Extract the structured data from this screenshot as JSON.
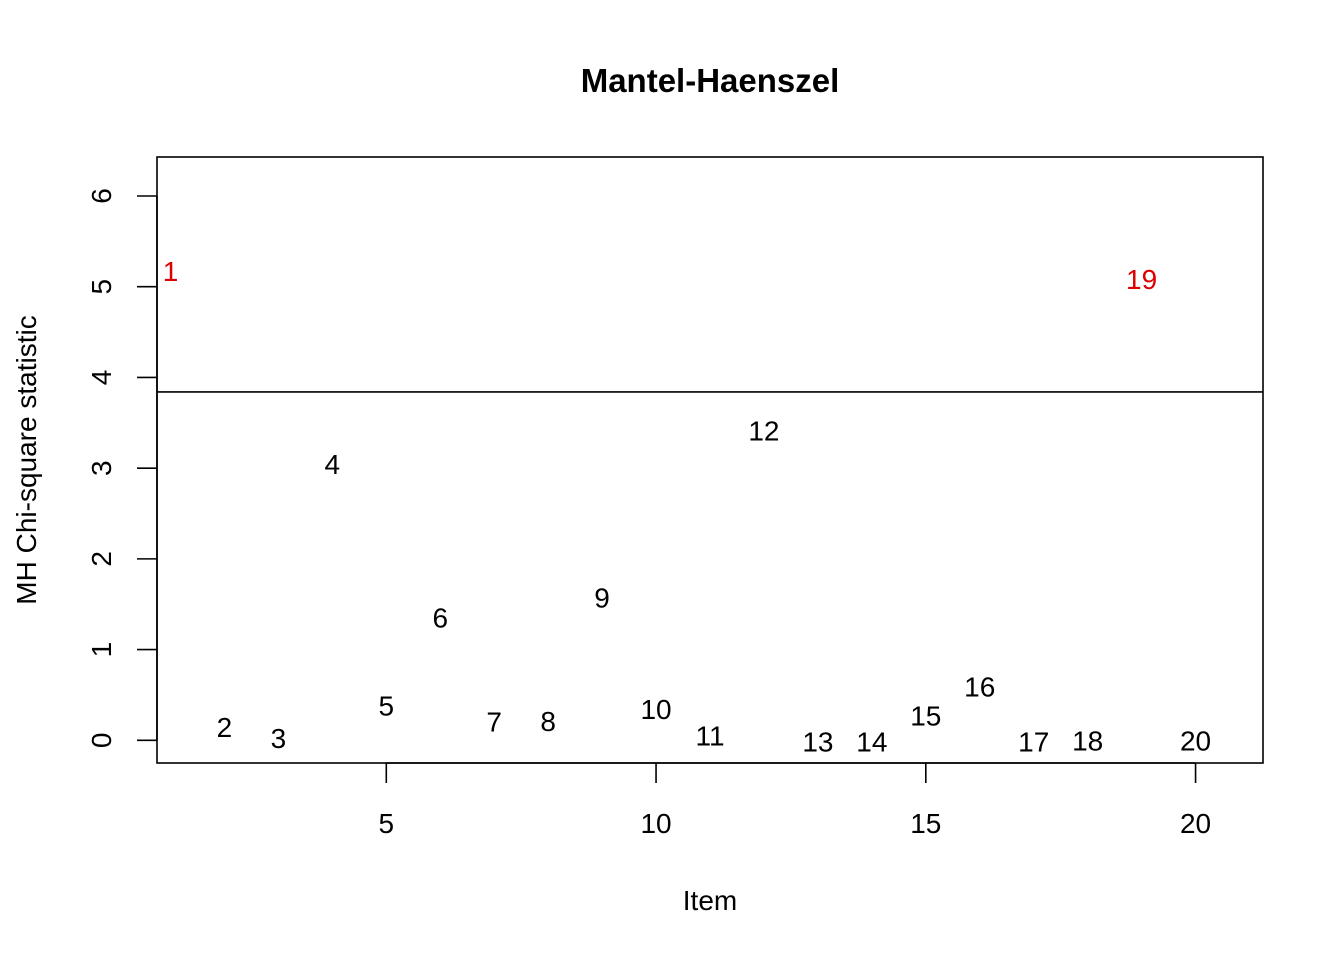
{
  "chart_data": {
    "type": "scatter",
    "title": "Mantel-Haenszel",
    "xlabel": "Item",
    "ylabel": "MH Chi-square statistic",
    "xlim": [
      0.75,
      21.25
    ],
    "ylim": [
      -0.25,
      6.43
    ],
    "x_ticks": [
      5,
      10,
      15,
      20
    ],
    "y_ticks": [
      0,
      1,
      2,
      3,
      4,
      5,
      6
    ],
    "threshold": 3.84,
    "grid": false,
    "legend": "none",
    "colors": {
      "normal": "#000000",
      "flagged": "#dd0000"
    },
    "points": [
      {
        "x": 1,
        "y": 5.17,
        "label": "1",
        "flagged": true
      },
      {
        "x": 2,
        "y": 0.14,
        "label": "2",
        "flagged": false
      },
      {
        "x": 3,
        "y": 0.02,
        "label": "3",
        "flagged": false
      },
      {
        "x": 4,
        "y": 3.04,
        "label": "4",
        "flagged": false
      },
      {
        "x": 5,
        "y": 0.38,
        "label": "5",
        "flagged": false
      },
      {
        "x": 6,
        "y": 1.35,
        "label": "6",
        "flagged": false
      },
      {
        "x": 7,
        "y": 0.2,
        "label": "7",
        "flagged": false
      },
      {
        "x": 8,
        "y": 0.21,
        "label": "8",
        "flagged": false
      },
      {
        "x": 9,
        "y": 1.57,
        "label": "9",
        "flagged": false
      },
      {
        "x": 10,
        "y": 0.34,
        "label": "10",
        "flagged": false
      },
      {
        "x": 11,
        "y": 0.05,
        "label": "11",
        "flagged": false
      },
      {
        "x": 12,
        "y": 3.41,
        "label": "12",
        "flagged": false
      },
      {
        "x": 13,
        "y": -0.02,
        "label": "13",
        "flagged": false
      },
      {
        "x": 14,
        "y": -0.02,
        "label": "14",
        "flagged": false
      },
      {
        "x": 15,
        "y": 0.27,
        "label": "15",
        "flagged": false
      },
      {
        "x": 16,
        "y": 0.59,
        "label": "16",
        "flagged": false
      },
      {
        "x": 17,
        "y": -0.02,
        "label": "17",
        "flagged": false
      },
      {
        "x": 18,
        "y": -0.01,
        "label": "18",
        "flagged": false
      },
      {
        "x": 19,
        "y": 5.08,
        "label": "19",
        "flagged": true
      },
      {
        "x": 20,
        "y": -0.01,
        "label": "20",
        "flagged": false
      }
    ]
  }
}
